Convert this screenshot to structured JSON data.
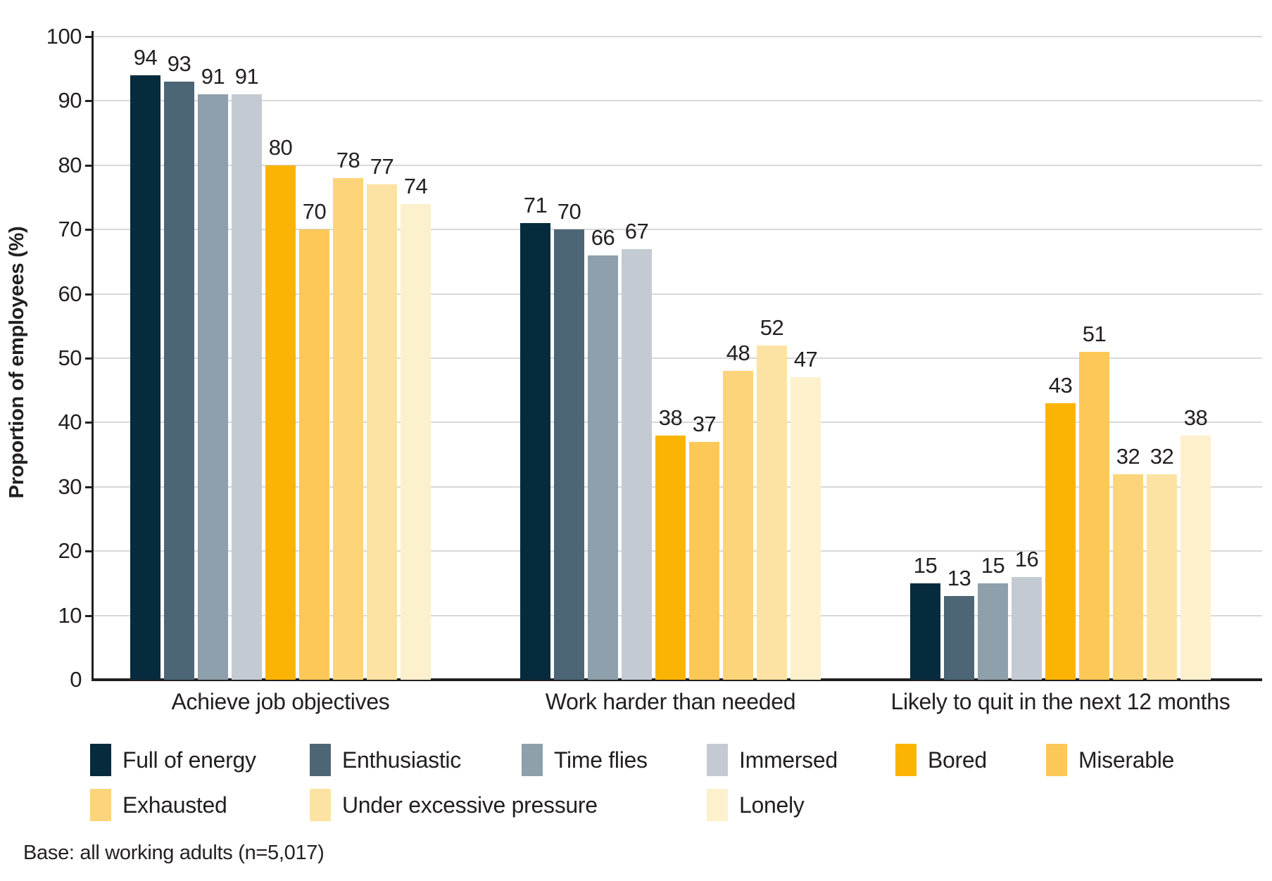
{
  "chart_data": {
    "type": "bar",
    "title": "",
    "ylabel": "Proportion of employees (%)",
    "xlabel": "",
    "ylim": [
      0,
      100
    ],
    "yticks": [
      0,
      10,
      20,
      30,
      40,
      50,
      60,
      70,
      80,
      90,
      100
    ],
    "grid": "horizontal",
    "legend_position": "bottom",
    "categories": [
      "Achieve job objectives",
      "Work harder than needed",
      "Likely to quit in the next 12 months"
    ],
    "series": [
      {
        "name": "Full of energy",
        "color": "#052b3d",
        "values": [
          94,
          71,
          15
        ]
      },
      {
        "name": "Enthusiastic",
        "color": "#4d6676",
        "values": [
          93,
          70,
          13
        ]
      },
      {
        "name": "Time flies",
        "color": "#8da0ab",
        "values": [
          91,
          66,
          15
        ]
      },
      {
        "name": "Immersed",
        "color": "#c3cad2",
        "values": [
          91,
          67,
          16
        ]
      },
      {
        "name": "Bored",
        "color": "#fcb404",
        "values": [
          80,
          38,
          43
        ]
      },
      {
        "name": "Miserable",
        "color": "#fdc857",
        "values": [
          70,
          37,
          51
        ]
      },
      {
        "name": "Exhausted",
        "color": "#fdd479",
        "values": [
          78,
          48,
          32
        ]
      },
      {
        "name": "Under excessive pressure",
        "color": "#fde3a3",
        "values": [
          77,
          52,
          32
        ]
      },
      {
        "name": "Lonely",
        "color": "#fdf0cd",
        "values": [
          74,
          47,
          38
        ]
      }
    ],
    "footnote": "Base: all working adults (n=5,017)"
  },
  "colors": {
    "grid": "#d8d8d8",
    "axis": "#231f20",
    "text": "#231f20",
    "background": "#ffffff"
  }
}
